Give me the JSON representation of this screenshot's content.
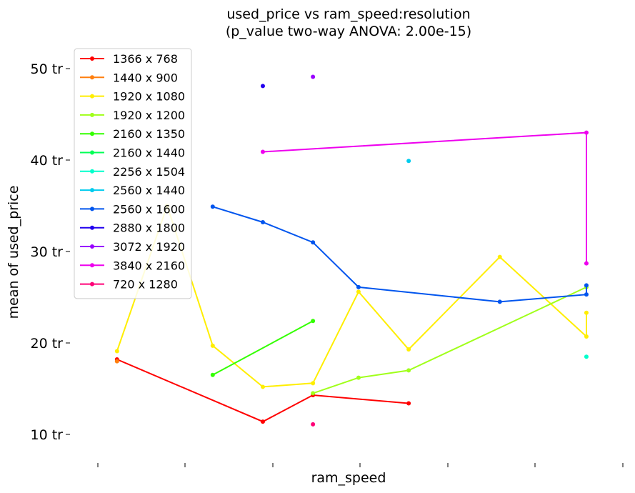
{
  "chart_data": {
    "type": "line",
    "title": "used_price vs ram_speed:resolution",
    "subtitle": "(p_value two-way ANOVA: 2.00e-15)",
    "xlabel": "ram_speed",
    "ylabel": "mean of used_price",
    "x_tick_labels": [
      "",
      "",
      "",
      "",
      "",
      "",
      ""
    ],
    "y_ticks": [
      {
        "value": 10,
        "label": "10 tr"
      },
      {
        "value": 20,
        "label": "20 tr"
      },
      {
        "value": 30,
        "label": "30 tr"
      },
      {
        "value": 40,
        "label": "40 tr"
      },
      {
        "value": 50,
        "label": "50 tr"
      }
    ],
    "ylim": [
      7.5,
      52.5
    ],
    "xlim": [
      -0.3,
      5.75
    ],
    "grid": false,
    "legend_position": "top-left",
    "series": [
      {
        "name": "1366 x 768",
        "color": "#ff0000",
        "points": [
          [
            0.2,
            18.2
          ],
          [
            1.8,
            11.4
          ],
          [
            2.35,
            14.3
          ],
          [
            3.4,
            13.4
          ]
        ]
      },
      {
        "name": "1440 x 900",
        "color": "#ff7f0e",
        "points": [
          [
            0.2,
            18.0
          ]
        ]
      },
      {
        "name": "1920 x 1080",
        "color": "#ffee00",
        "points": [
          [
            0.2,
            19.1
          ],
          [
            0.75,
            35.0
          ],
          [
            1.25,
            19.7
          ],
          [
            1.8,
            15.2
          ],
          [
            2.35,
            15.6
          ],
          [
            2.85,
            25.6
          ],
          [
            3.4,
            19.3
          ],
          [
            4.4,
            29.4
          ],
          [
            5.35,
            20.7
          ],
          [
            5.35,
            23.3
          ]
        ]
      },
      {
        "name": "1920 x 1200",
        "color": "#a0ff1a",
        "points": [
          [
            2.35,
            14.5
          ],
          [
            2.85,
            16.2
          ],
          [
            3.4,
            17.0
          ],
          [
            5.35,
            26.1
          ]
        ]
      },
      {
        "name": "2160 x 1350",
        "color": "#33ff00",
        "points": [
          [
            1.25,
            16.5
          ],
          [
            2.35,
            22.4
          ]
        ]
      },
      {
        "name": "2160 x 1440",
        "color": "#00ff55",
        "points": []
      },
      {
        "name": "2256 x 1504",
        "color": "#00ffcc",
        "points": [
          [
            5.35,
            18.5
          ]
        ]
      },
      {
        "name": "2560 x 1440",
        "color": "#00ccee",
        "points": [
          [
            3.4,
            39.9
          ]
        ]
      },
      {
        "name": "2560 x 1600",
        "color": "#0055ee",
        "points": [
          [
            1.25,
            34.9
          ],
          [
            1.8,
            33.2
          ],
          [
            2.35,
            31.0
          ],
          [
            2.85,
            26.1
          ],
          [
            4.4,
            24.5
          ],
          [
            5.35,
            25.3
          ],
          [
            5.35,
            26.3
          ]
        ]
      },
      {
        "name": "2880 x 1800",
        "color": "#2200ee",
        "points": [
          [
            1.8,
            48.1
          ]
        ]
      },
      {
        "name": "3072 x 1920",
        "color": "#9900ff",
        "points": [
          [
            2.35,
            49.1
          ]
        ]
      },
      {
        "name": "3840 x 2160",
        "color": "#ee00ee",
        "points": [
          [
            1.8,
            40.9
          ],
          [
            5.35,
            43.0
          ],
          [
            5.35,
            28.7
          ]
        ]
      },
      {
        "name": "720 x 1280",
        "color": "#ff0077",
        "points": [
          [
            2.35,
            11.1
          ]
        ]
      }
    ]
  }
}
